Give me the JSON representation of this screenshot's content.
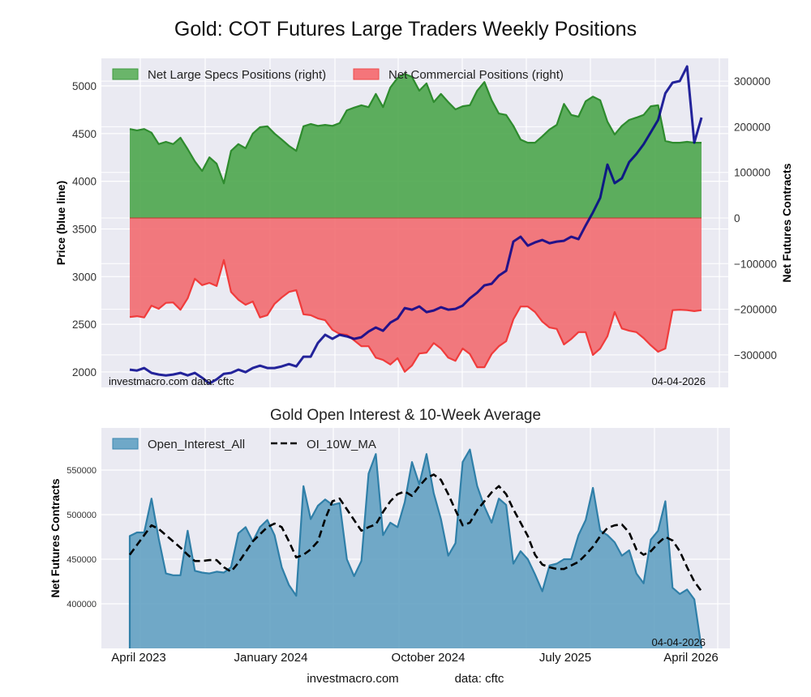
{
  "chart_data": [
    {
      "type": "area",
      "title": "Gold: COT Futures Large Traders Weekly Positions",
      "ylabel_left": "Price (blue line)",
      "ylabel_right": "Net Futures Contracts",
      "ylim_left": [
        1838,
        5289
      ],
      "ylim_right": [
        -371200,
        349900
      ],
      "yticks_left": [
        "2000",
        "2500",
        "3000",
        "3500",
        "4000",
        "4500",
        "5000"
      ],
      "yticks_left_values": [
        2000,
        2500,
        3000,
        3500,
        4000,
        4500,
        5000
      ],
      "yticks_right": [
        "−300000",
        "−200000",
        "−100000",
        "0",
        "100000",
        "200000",
        "300000"
      ],
      "yticks_right_values": [
        -300000,
        -200000,
        -100000,
        0,
        100000,
        200000,
        300000
      ],
      "grid": true,
      "legend_placement": "top-left",
      "x_start": "2023-03",
      "x_end": "2026-03",
      "x_note": "biweekly samples",
      "series": [
        {
          "name": "Net Large Specs Positions (right)",
          "axis": "right",
          "color": "#2e8b2e",
          "fill": "#4da64d",
          "values": [
            195000,
            192000,
            195000,
            187000,
            162000,
            167000,
            162000,
            176000,
            151000,
            124000,
            103000,
            133000,
            119000,
            76000,
            147000,
            162000,
            153000,
            185000,
            199000,
            201000,
            185000,
            172000,
            158000,
            147000,
            201000,
            206000,
            202000,
            204000,
            202000,
            208000,
            236000,
            242000,
            247000,
            243000,
            272000,
            243000,
            286000,
            307000,
            316000,
            309000,
            279000,
            295000,
            254000,
            272000,
            254000,
            238000,
            245000,
            247000,
            279000,
            298000,
            258000,
            229000,
            226000,
            202000,
            172000,
            165000,
            165000,
            179000,
            194000,
            204000,
            250000,
            226000,
            222000,
            256000,
            266000,
            258000,
            211000,
            183000,
            202000,
            215000,
            220000,
            226000,
            245000,
            247000,
            169000,
            165000,
            165000,
            167000,
            165000,
            165000
          ]
        },
        {
          "name": "Net Commercial Positions (right)",
          "axis": "right",
          "color": "#f03c3c",
          "fill": "#f26b70",
          "values": [
            -217000,
            -215000,
            -218000,
            -192000,
            -199000,
            -186000,
            -185000,
            -201000,
            -176000,
            -133000,
            -147000,
            -142000,
            -149000,
            -92000,
            -162000,
            -179000,
            -190000,
            -183000,
            -218000,
            -213000,
            -188000,
            -174000,
            -162000,
            -158000,
            -211000,
            -213000,
            -220000,
            -224000,
            -245000,
            -254000,
            -256000,
            -268000,
            -281000,
            -281000,
            -306000,
            -311000,
            -321000,
            -307000,
            -337000,
            -323000,
            -297000,
            -295000,
            -274000,
            -286000,
            -306000,
            -313000,
            -286000,
            -298000,
            -327000,
            -327000,
            -298000,
            -281000,
            -270000,
            -222000,
            -194000,
            -194000,
            -206000,
            -227000,
            -240000,
            -243000,
            -277000,
            -265000,
            -250000,
            -250000,
            -300000,
            -286000,
            -259000,
            -206000,
            -242000,
            -247000,
            -250000,
            -263000,
            -279000,
            -293000,
            -286000,
            -202000,
            -201000,
            -202000,
            -204000,
            -202000
          ]
        },
        {
          "name": "Price",
          "axis": "left",
          "color": "#00008b",
          "values": [
            2024,
            2015,
            2041,
            1990,
            1973,
            1964,
            1973,
            1990,
            1964,
            1990,
            1939,
            1879,
            1922,
            1981,
            1990,
            2024,
            1998,
            2041,
            2066,
            2041,
            2041,
            2058,
            2083,
            2058,
            2160,
            2160,
            2305,
            2390,
            2347,
            2390,
            2373,
            2347,
            2364,
            2424,
            2466,
            2432,
            2517,
            2560,
            2670,
            2653,
            2687,
            2628,
            2645,
            2679,
            2653,
            2662,
            2696,
            2772,
            2832,
            2908,
            2925,
            3010,
            3061,
            3367,
            3418,
            3325,
            3359,
            3384,
            3350,
            3367,
            3376,
            3418,
            3393,
            3537,
            3673,
            3826,
            4175,
            3980,
            4031,
            4201,
            4286,
            4388,
            4515,
            4643,
            4923,
            5034,
            5051,
            5204,
            4405,
            4668
          ]
        }
      ],
      "annotations": {
        "left": "investmacro.com    data: cftc",
        "right": "04-04-2026"
      }
    },
    {
      "type": "area",
      "title": "Gold Open Interest & 10-Week Average",
      "ylabel": "Net Futures Contracts",
      "ylim": [
        350000,
        597300
      ],
      "yticks": [
        "400000",
        "450000",
        "500000",
        "550000"
      ],
      "yticks_values": [
        400000,
        450000,
        500000,
        550000
      ],
      "xticks": [
        "April 2023",
        "January 2024",
        "October 2024",
        "July 2025",
        "April 2026"
      ],
      "grid": true,
      "legend_placement": "top-left",
      "series": [
        {
          "name": "Open_Interest_All",
          "color": "#2f7fa8",
          "fill": "#5b9cc0",
          "values": [
            476000,
            480000,
            480000,
            518000,
            473000,
            434000,
            432000,
            432000,
            482000,
            437000,
            435000,
            434000,
            436000,
            435000,
            441000,
            479000,
            486000,
            470000,
            486000,
            494000,
            477000,
            441000,
            421000,
            409000,
            532000,
            495000,
            510000,
            517000,
            511000,
            513000,
            450000,
            431000,
            448000,
            546000,
            568000,
            477000,
            491000,
            486000,
            514000,
            559000,
            534000,
            568000,
            524000,
            495000,
            454000,
            468000,
            559000,
            573000,
            532000,
            509000,
            491000,
            518000,
            511000,
            445000,
            459000,
            450000,
            433000,
            414000,
            443000,
            445000,
            450000,
            450000,
            477000,
            494000,
            530000,
            482000,
            477000,
            469000,
            454000,
            460000,
            434000,
            423000,
            472000,
            482000,
            515000,
            418000,
            411000,
            416000,
            405000,
            350000
          ]
        },
        {
          "name": "OI_10W_MA",
          "color": "#000000",
          "dashed": true,
          "values": [
            455000,
            466000,
            477000,
            488000,
            484000,
            477000,
            470000,
            463000,
            455000,
            448000,
            448000,
            449000,
            449000,
            441000,
            436000,
            446000,
            458000,
            470000,
            478000,
            486000,
            490000,
            486000,
            470000,
            452000,
            455000,
            461000,
            470000,
            495000,
            515000,
            518000,
            506000,
            494000,
            482000,
            486000,
            489000,
            503000,
            515000,
            523000,
            526000,
            521000,
            532000,
            541000,
            545000,
            539000,
            523000,
            505000,
            488000,
            491000,
            505000,
            515000,
            525000,
            532000,
            523000,
            506000,
            491000,
            476000,
            455000,
            444000,
            441000,
            439000,
            439000,
            443000,
            447000,
            455000,
            464000,
            476000,
            485000,
            488000,
            489000,
            480000,
            461000,
            455000,
            459000,
            468000,
            475000,
            471000,
            459000,
            441000,
            425000,
            414000
          ]
        }
      ],
      "annotations": {
        "right": "04-04-2026"
      },
      "footer": {
        "site": "investmacro.com",
        "source": "data: cftc"
      }
    }
  ],
  "legend_labels": {
    "top": [
      "Net Large Specs Positions (right)",
      "Net Commercial Positions (right)"
    ],
    "bottom": [
      "Open_Interest_All",
      "OI_10W_MA"
    ]
  }
}
